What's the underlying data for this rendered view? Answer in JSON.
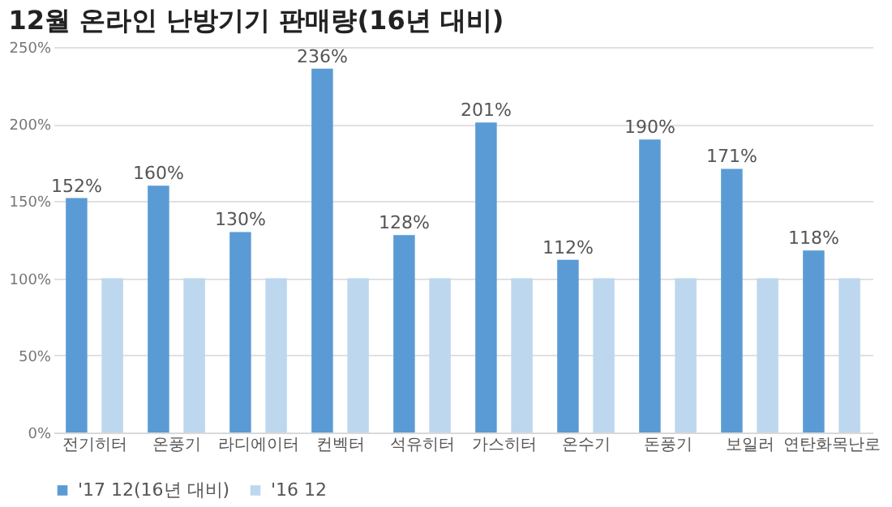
{
  "chart_data": {
    "type": "bar",
    "title": "12월 온라인 난방기기 판매량(16년 대비)",
    "categories": [
      "전기히터",
      "온풍기",
      "라디에이터",
      "컨벡터",
      "석유히터",
      "가스히터",
      "온수기",
      "돈풍기",
      "보일러",
      "연탄화목난로"
    ],
    "series": [
      {
        "name": "'17 12(16년 대비)",
        "color": "#5b9bd5",
        "values": [
          152,
          160,
          130,
          236,
          128,
          201,
          112,
          190,
          171,
          118
        ],
        "value_labels": [
          "152%",
          "160%",
          "130%",
          "236%",
          "128%",
          "201%",
          "112%",
          "190%",
          "171%",
          "118%"
        ]
      },
      {
        "name": "'16 12",
        "color": "#bdd7ee",
        "values": [
          100,
          100,
          100,
          100,
          100,
          100,
          100,
          100,
          100,
          100
        ]
      }
    ],
    "ylim": [
      0,
      250
    ],
    "yticks": [
      {
        "value": 0,
        "label": "0%"
      },
      {
        "value": 50,
        "label": "50%"
      },
      {
        "value": 100,
        "label": "100%"
      },
      {
        "value": 150,
        "label": "150%"
      },
      {
        "value": 200,
        "label": "200%"
      },
      {
        "value": 250,
        "label": "250%"
      }
    ],
    "grid": "y",
    "legend": "bottom"
  }
}
